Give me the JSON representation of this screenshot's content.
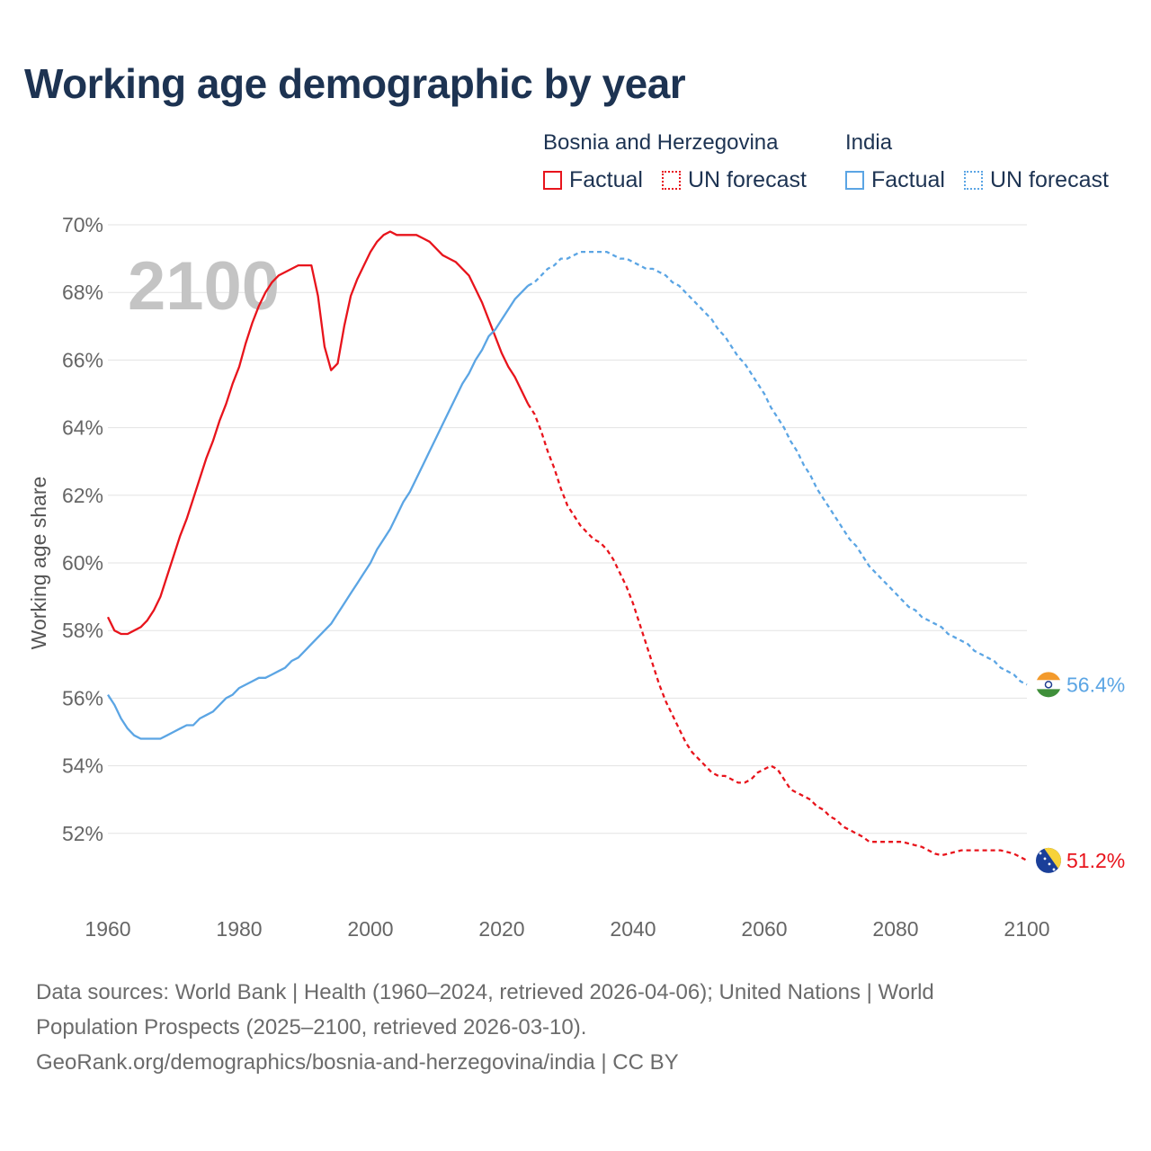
{
  "title": "Working age demographic by year",
  "legend": {
    "groups": [
      {
        "name": "Bosnia and Herzegovina",
        "items": [
          "Factual",
          "UN forecast"
        ],
        "color": "#e8141c"
      },
      {
        "name": "India",
        "items": [
          "Factual",
          "UN forecast"
        ],
        "color": "#5ba5e4"
      }
    ]
  },
  "footer": {
    "line1": "Data sources: World Bank | Health (1960–2024, retrieved 2026-04-06); United Nations | World",
    "line2": "Population Prospects (2025–2100, retrieved 2026-03-10).",
    "line3": "GeoRank.org/demographics/bosnia-and-herzegovina/india | CC BY"
  },
  "chart_data": {
    "type": "line",
    "title": "Working age demographic by year",
    "year_watermark": "2100",
    "xlabel": "",
    "ylabel": "Working age share",
    "xlim": [
      1960,
      2100
    ],
    "ylim": [
      50,
      70
    ],
    "xticks": [
      "1960",
      "1980",
      "2000",
      "2020",
      "2040",
      "2060",
      "2080",
      "2100"
    ],
    "yticks": [
      "52%",
      "54%",
      "56%",
      "58%",
      "60%",
      "62%",
      "64%",
      "66%",
      "68%",
      "70%"
    ],
    "grid": true,
    "series": [
      {
        "name": "Bosnia and Herzegovina",
        "color": "#e8141c",
        "end_label": "51.2%",
        "factual": [
          [
            1960,
            58.4
          ],
          [
            1961,
            58.0
          ],
          [
            1962,
            57.9
          ],
          [
            1963,
            57.9
          ],
          [
            1964,
            58.0
          ],
          [
            1965,
            58.1
          ],
          [
            1966,
            58.3
          ],
          [
            1967,
            58.6
          ],
          [
            1968,
            59.0
          ],
          [
            1969,
            59.6
          ],
          [
            1970,
            60.2
          ],
          [
            1971,
            60.8
          ],
          [
            1972,
            61.3
          ],
          [
            1973,
            61.9
          ],
          [
            1974,
            62.5
          ],
          [
            1975,
            63.1
          ],
          [
            1976,
            63.6
          ],
          [
            1977,
            64.2
          ],
          [
            1978,
            64.7
          ],
          [
            1979,
            65.3
          ],
          [
            1980,
            65.8
          ],
          [
            1981,
            66.5
          ],
          [
            1982,
            67.1
          ],
          [
            1983,
            67.6
          ],
          [
            1984,
            68.0
          ],
          [
            1985,
            68.3
          ],
          [
            1986,
            68.5
          ],
          [
            1987,
            68.6
          ],
          [
            1988,
            68.7
          ],
          [
            1989,
            68.8
          ],
          [
            1990,
            68.8
          ],
          [
            1991,
            68.8
          ],
          [
            1992,
            67.9
          ],
          [
            1993,
            66.4
          ],
          [
            1994,
            65.7
          ],
          [
            1995,
            65.9
          ],
          [
            1996,
            67.0
          ],
          [
            1997,
            67.9
          ],
          [
            1998,
            68.4
          ],
          [
            1999,
            68.8
          ],
          [
            2000,
            69.2
          ],
          [
            2001,
            69.5
          ],
          [
            2002,
            69.7
          ],
          [
            2003,
            69.8
          ],
          [
            2004,
            69.7
          ],
          [
            2005,
            69.7
          ],
          [
            2006,
            69.7
          ],
          [
            2007,
            69.7
          ],
          [
            2008,
            69.6
          ],
          [
            2009,
            69.5
          ],
          [
            2010,
            69.3
          ],
          [
            2011,
            69.1
          ],
          [
            2012,
            69.0
          ],
          [
            2013,
            68.9
          ],
          [
            2014,
            68.7
          ],
          [
            2015,
            68.5
          ],
          [
            2016,
            68.1
          ],
          [
            2017,
            67.7
          ],
          [
            2018,
            67.2
          ],
          [
            2019,
            66.7
          ],
          [
            2020,
            66.2
          ],
          [
            2021,
            65.8
          ],
          [
            2022,
            65.5
          ],
          [
            2023,
            65.1
          ],
          [
            2024,
            64.7
          ]
        ],
        "forecast": [
          [
            2024,
            64.7
          ],
          [
            2025,
            64.4
          ],
          [
            2026,
            63.9
          ],
          [
            2027,
            63.3
          ],
          [
            2028,
            62.8
          ],
          [
            2029,
            62.2
          ],
          [
            2030,
            61.7
          ],
          [
            2031,
            61.4
          ],
          [
            2032,
            61.1
          ],
          [
            2033,
            60.9
          ],
          [
            2034,
            60.7
          ],
          [
            2035,
            60.6
          ],
          [
            2036,
            60.4
          ],
          [
            2037,
            60.1
          ],
          [
            2038,
            59.7
          ],
          [
            2039,
            59.3
          ],
          [
            2040,
            58.8
          ],
          [
            2041,
            58.2
          ],
          [
            2042,
            57.6
          ],
          [
            2043,
            57.0
          ],
          [
            2044,
            56.4
          ],
          [
            2045,
            55.9
          ],
          [
            2046,
            55.5
          ],
          [
            2047,
            55.1
          ],
          [
            2048,
            54.7
          ],
          [
            2049,
            54.4
          ],
          [
            2050,
            54.2
          ],
          [
            2051,
            54.0
          ],
          [
            2052,
            53.8
          ],
          [
            2053,
            53.7
          ],
          [
            2054,
            53.7
          ],
          [
            2055,
            53.6
          ],
          [
            2056,
            53.5
          ],
          [
            2057,
            53.5
          ],
          [
            2058,
            53.6
          ],
          [
            2059,
            53.8
          ],
          [
            2060,
            53.9
          ],
          [
            2061,
            54.0
          ],
          [
            2062,
            53.9
          ],
          [
            2063,
            53.6
          ],
          [
            2064,
            53.3
          ],
          [
            2065,
            53.2
          ],
          [
            2066,
            53.1
          ],
          [
            2067,
            53.0
          ],
          [
            2068,
            52.8
          ],
          [
            2069,
            52.7
          ],
          [
            2070,
            52.5
          ],
          [
            2071,
            52.4
          ],
          [
            2072,
            52.2
          ],
          [
            2073,
            52.1
          ],
          [
            2074,
            52.0
          ],
          [
            2075,
            51.9
          ],
          [
            2076,
            51.75
          ],
          [
            2077,
            51.75
          ],
          [
            2078,
            51.75
          ],
          [
            2079,
            51.75
          ],
          [
            2080,
            51.75
          ],
          [
            2081,
            51.75
          ],
          [
            2082,
            51.7
          ],
          [
            2083,
            51.65
          ],
          [
            2084,
            51.6
          ],
          [
            2085,
            51.5
          ],
          [
            2086,
            51.4
          ],
          [
            2087,
            51.35
          ],
          [
            2088,
            51.4
          ],
          [
            2089,
            51.45
          ],
          [
            2090,
            51.5
          ],
          [
            2091,
            51.5
          ],
          [
            2092,
            51.5
          ],
          [
            2093,
            51.5
          ],
          [
            2094,
            51.5
          ],
          [
            2095,
            51.5
          ],
          [
            2096,
            51.5
          ],
          [
            2097,
            51.45
          ],
          [
            2098,
            51.4
          ],
          [
            2099,
            51.3
          ],
          [
            2100,
            51.2
          ]
        ]
      },
      {
        "name": "India",
        "color": "#5ba5e4",
        "end_label": "56.4%",
        "factual": [
          [
            1960,
            56.1
          ],
          [
            1961,
            55.8
          ],
          [
            1962,
            55.4
          ],
          [
            1963,
            55.1
          ],
          [
            1964,
            54.9
          ],
          [
            1965,
            54.8
          ],
          [
            1966,
            54.8
          ],
          [
            1967,
            54.8
          ],
          [
            1968,
            54.8
          ],
          [
            1969,
            54.9
          ],
          [
            1970,
            55.0
          ],
          [
            1971,
            55.1
          ],
          [
            1972,
            55.2
          ],
          [
            1973,
            55.2
          ],
          [
            1974,
            55.4
          ],
          [
            1975,
            55.5
          ],
          [
            1976,
            55.6
          ],
          [
            1977,
            55.8
          ],
          [
            1978,
            56.0
          ],
          [
            1979,
            56.1
          ],
          [
            1980,
            56.3
          ],
          [
            1981,
            56.4
          ],
          [
            1982,
            56.5
          ],
          [
            1983,
            56.6
          ],
          [
            1984,
            56.6
          ],
          [
            1985,
            56.7
          ],
          [
            1986,
            56.8
          ],
          [
            1987,
            56.9
          ],
          [
            1988,
            57.1
          ],
          [
            1989,
            57.2
          ],
          [
            1990,
            57.4
          ],
          [
            1991,
            57.6
          ],
          [
            1992,
            57.8
          ],
          [
            1993,
            58.0
          ],
          [
            1994,
            58.2
          ],
          [
            1995,
            58.5
          ],
          [
            1996,
            58.8
          ],
          [
            1997,
            59.1
          ],
          [
            1998,
            59.4
          ],
          [
            1999,
            59.7
          ],
          [
            2000,
            60.0
          ],
          [
            2001,
            60.4
          ],
          [
            2002,
            60.7
          ],
          [
            2003,
            61.0
          ],
          [
            2004,
            61.4
          ],
          [
            2005,
            61.8
          ],
          [
            2006,
            62.1
          ],
          [
            2007,
            62.5
          ],
          [
            2008,
            62.9
          ],
          [
            2009,
            63.3
          ],
          [
            2010,
            63.7
          ],
          [
            2011,
            64.1
          ],
          [
            2012,
            64.5
          ],
          [
            2013,
            64.9
          ],
          [
            2014,
            65.3
          ],
          [
            2015,
            65.6
          ],
          [
            2016,
            66.0
          ],
          [
            2017,
            66.3
          ],
          [
            2018,
            66.7
          ],
          [
            2019,
            66.9
          ],
          [
            2020,
            67.2
          ],
          [
            2021,
            67.5
          ],
          [
            2022,
            67.8
          ],
          [
            2023,
            68.0
          ],
          [
            2024,
            68.2
          ]
        ],
        "forecast": [
          [
            2024,
            68.2
          ],
          [
            2025,
            68.3
          ],
          [
            2026,
            68.5
          ],
          [
            2027,
            68.7
          ],
          [
            2028,
            68.8
          ],
          [
            2029,
            69.0
          ],
          [
            2030,
            69.0
          ],
          [
            2031,
            69.1
          ],
          [
            2032,
            69.2
          ],
          [
            2033,
            69.2
          ],
          [
            2034,
            69.2
          ],
          [
            2035,
            69.2
          ],
          [
            2036,
            69.2
          ],
          [
            2037,
            69.1
          ],
          [
            2038,
            69.0
          ],
          [
            2039,
            69.0
          ],
          [
            2040,
            68.9
          ],
          [
            2041,
            68.8
          ],
          [
            2042,
            68.7
          ],
          [
            2043,
            68.7
          ],
          [
            2044,
            68.6
          ],
          [
            2045,
            68.5
          ],
          [
            2046,
            68.3
          ],
          [
            2047,
            68.2
          ],
          [
            2048,
            68.0
          ],
          [
            2049,
            67.8
          ],
          [
            2050,
            67.6
          ],
          [
            2051,
            67.4
          ],
          [
            2052,
            67.2
          ],
          [
            2053,
            66.9
          ],
          [
            2054,
            66.7
          ],
          [
            2055,
            66.4
          ],
          [
            2056,
            66.1
          ],
          [
            2057,
            65.9
          ],
          [
            2058,
            65.6
          ],
          [
            2059,
            65.3
          ],
          [
            2060,
            65.0
          ],
          [
            2061,
            64.6
          ],
          [
            2062,
            64.3
          ],
          [
            2063,
            64.0
          ],
          [
            2064,
            63.6
          ],
          [
            2065,
            63.3
          ],
          [
            2066,
            62.9
          ],
          [
            2067,
            62.6
          ],
          [
            2068,
            62.2
          ],
          [
            2069,
            61.9
          ],
          [
            2070,
            61.6
          ],
          [
            2071,
            61.3
          ],
          [
            2072,
            61.0
          ],
          [
            2073,
            60.7
          ],
          [
            2074,
            60.5
          ],
          [
            2075,
            60.2
          ],
          [
            2076,
            59.9
          ],
          [
            2077,
            59.7
          ],
          [
            2078,
            59.5
          ],
          [
            2079,
            59.3
          ],
          [
            2080,
            59.1
          ],
          [
            2081,
            58.9
          ],
          [
            2082,
            58.7
          ],
          [
            2083,
            58.6
          ],
          [
            2084,
            58.4
          ],
          [
            2085,
            58.3
          ],
          [
            2086,
            58.2
          ],
          [
            2087,
            58.1
          ],
          [
            2088,
            57.9
          ],
          [
            2089,
            57.8
          ],
          [
            2090,
            57.7
          ],
          [
            2091,
            57.6
          ],
          [
            2092,
            57.4
          ],
          [
            2093,
            57.3
          ],
          [
            2094,
            57.2
          ],
          [
            2095,
            57.1
          ],
          [
            2096,
            56.9
          ],
          [
            2097,
            56.8
          ],
          [
            2098,
            56.7
          ],
          [
            2099,
            56.5
          ],
          [
            2100,
            56.4
          ]
        ]
      }
    ]
  }
}
